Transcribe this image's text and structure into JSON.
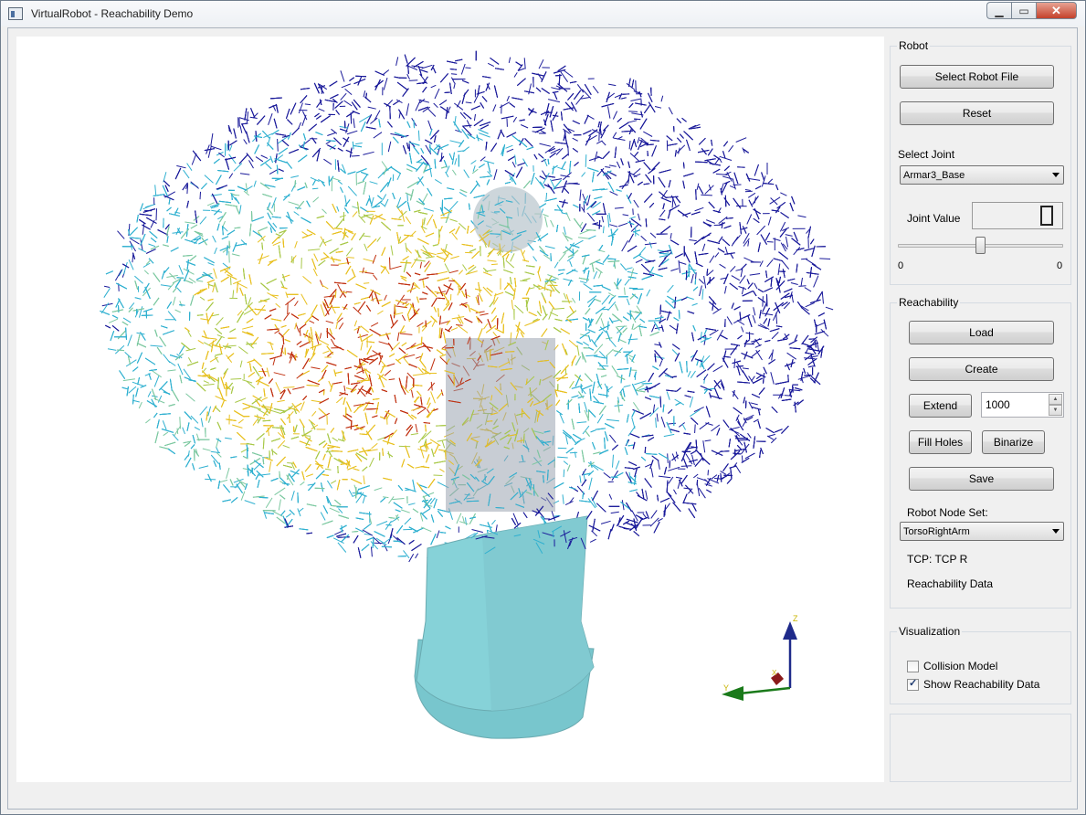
{
  "window": {
    "title": "VirtualRobot - Reachability Demo"
  },
  "robot": {
    "group_title": "Robot",
    "select_file_label": "Select Robot File",
    "reset_label": "Reset",
    "select_joint_label": "Select Joint",
    "joint_selected": "Armar3_Base",
    "joint_value_label": "Joint Value",
    "joint_value_display": "0",
    "slider_min": "0",
    "slider_max": "0"
  },
  "reachability": {
    "group_title": "Reachability",
    "load_label": "Load",
    "create_label": "Create",
    "extend_label": "Extend",
    "extend_value": "1000",
    "fill_holes_label": "Fill Holes",
    "binarize_label": "Binarize",
    "save_label": "Save",
    "node_set_label": "Robot Node Set:",
    "node_set_selected": "TorsoRightArm",
    "tcp_text": "TCP: TCP R",
    "data_text": "Reachability Data"
  },
  "visualization": {
    "group_title": "Visualization",
    "collision_model_label": "Collision Model",
    "collision_model_checked": false,
    "show_reachability_label": "Show Reachability Data",
    "show_reachability_checked": true
  },
  "axes": {
    "z_label": "Z",
    "x_label": "X",
    "y_label": "Y"
  },
  "colors": {
    "robot_body": "#7fd0d6",
    "axis_z": "#1e2a8a",
    "axis_y": "#1a7a1a",
    "axis_x": "#8a1a1a",
    "reach_low": "#1a1a9a",
    "reach_mid": "#2fb0d0",
    "reach_high": "#e8c020",
    "reach_max": "#c03010"
  }
}
